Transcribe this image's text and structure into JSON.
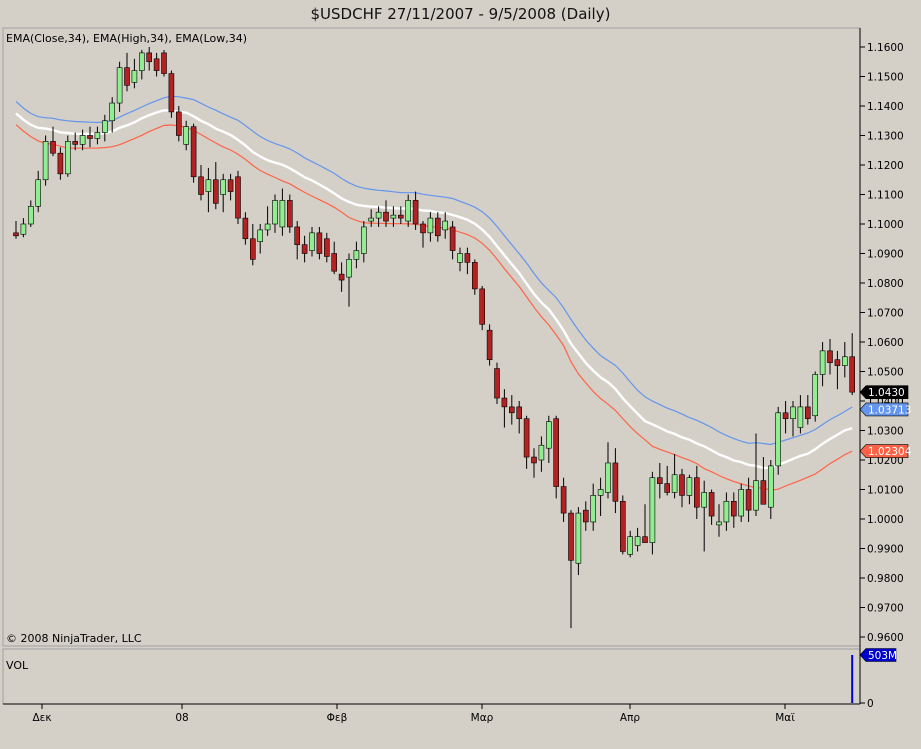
{
  "chart_data": {
    "type": "candlestick",
    "title": "$USDCHF  27/11/2007 - 9/5/2008 (Daily)",
    "indicators_label": "EMA(Close,34), EMA(High,34), EMA(Low,34)",
    "copyright": "© 2008 NinjaTrader, LLC",
    "volume_label": "VOL",
    "volume_badge": "503M",
    "volume_zero_label": "0",
    "ylim": [
      0.9565,
      1.1655
    ],
    "y_ticks": [
      "1.1600",
      "1.1500",
      "1.1400",
      "1.1300",
      "1.1200",
      "1.1100",
      "1.1000",
      "1.0900",
      "1.0800",
      "1.0700",
      "1.0600",
      "1.0500",
      "1.0400",
      "1.0300",
      "1.0200",
      "1.0100",
      "1.0000",
      "0.9900",
      "0.9800",
      "0.9700",
      "0.9600"
    ],
    "x_tick_labels": [
      "Δεκ",
      "08",
      "Φεβ",
      "Μαρ",
      "Απρ",
      "Μαϊ"
    ],
    "last_price_badge": "1.0430",
    "ema_high_badge": "1.03713",
    "ema_low_badge": "1.02304",
    "grid": false,
    "colors": {
      "up": "#90ee90",
      "down": "#b22222",
      "ema_high": "#6495ed",
      "ema_close": "#ffffff",
      "ema_low": "#ff6347",
      "volume": "#0000cd"
    },
    "candles": [
      [
        1.097,
        1.101,
        1.095,
        1.096
      ],
      [
        1.0965,
        1.102,
        1.0955,
        1.1
      ],
      [
        1.1,
        1.108,
        1.099,
        1.106
      ],
      [
        1.106,
        1.118,
        1.104,
        1.115
      ],
      [
        1.115,
        1.13,
        1.113,
        1.128
      ],
      [
        1.128,
        1.133,
        1.123,
        1.124
      ],
      [
        1.124,
        1.126,
        1.115,
        1.117
      ],
      [
        1.117,
        1.13,
        1.116,
        1.128
      ],
      [
        1.128,
        1.131,
        1.125,
        1.127
      ],
      [
        1.127,
        1.132,
        1.125,
        1.13
      ],
      [
        1.13,
        1.133,
        1.126,
        1.129
      ],
      [
        1.129,
        1.133,
        1.127,
        1.131
      ],
      [
        1.131,
        1.137,
        1.128,
        1.135
      ],
      [
        1.135,
        1.143,
        1.131,
        1.141
      ],
      [
        1.141,
        1.155,
        1.138,
        1.153
      ],
      [
        1.153,
        1.158,
        1.145,
        1.147
      ],
      [
        1.148,
        1.156,
        1.146,
        1.152
      ],
      [
        1.152,
        1.159,
        1.149,
        1.158
      ],
      [
        1.158,
        1.16,
        1.152,
        1.155
      ],
      [
        1.156,
        1.158,
        1.15,
        1.152
      ],
      [
        1.158,
        1.159,
        1.15,
        1.151
      ],
      [
        1.151,
        1.152,
        1.136,
        1.138
      ],
      [
        1.138,
        1.14,
        1.128,
        1.13
      ],
      [
        1.127,
        1.135,
        1.125,
        1.133
      ],
      [
        1.133,
        1.134,
        1.114,
        1.116
      ],
      [
        1.116,
        1.12,
        1.108,
        1.11
      ],
      [
        1.111,
        1.119,
        1.104,
        1.115
      ],
      [
        1.115,
        1.121,
        1.105,
        1.107
      ],
      [
        1.11,
        1.117,
        1.104,
        1.115
      ],
      [
        1.115,
        1.117,
        1.108,
        1.111
      ],
      [
        1.116,
        1.118,
        1.1,
        1.102
      ],
      [
        1.102,
        1.104,
        1.093,
        1.095
      ],
      [
        1.095,
        1.1,
        1.086,
        1.088
      ],
      [
        1.094,
        1.1,
        1.09,
        1.098
      ],
      [
        1.098,
        1.106,
        1.096,
        1.1
      ],
      [
        1.1,
        1.11,
        1.097,
        1.108
      ],
      [
        1.099,
        1.112,
        1.096,
        1.108
      ],
      [
        1.108,
        1.11,
        1.097,
        1.099
      ],
      [
        1.099,
        1.101,
        1.088,
        1.093
      ],
      [
        1.093,
        1.096,
        1.087,
        1.09
      ],
      [
        1.091,
        1.099,
        1.089,
        1.097
      ],
      [
        1.097,
        1.099,
        1.088,
        1.09
      ],
      [
        1.095,
        1.097,
        1.087,
        1.089
      ],
      [
        1.09,
        1.094,
        1.083,
        1.084
      ],
      [
        1.083,
        1.087,
        1.077,
        1.081
      ],
      [
        1.082,
        1.09,
        1.072,
        1.088
      ],
      [
        1.088,
        1.094,
        1.085,
        1.091
      ],
      [
        1.09,
        1.101,
        1.087,
        1.099
      ],
      [
        1.101,
        1.105,
        1.099,
        1.102
      ],
      [
        1.102,
        1.106,
        1.099,
        1.104
      ],
      [
        1.104,
        1.108,
        1.099,
        1.101
      ],
      [
        1.102,
        1.106,
        1.099,
        1.103
      ],
      [
        1.103,
        1.106,
        1.1,
        1.102
      ],
      [
        1.101,
        1.11,
        1.099,
        1.108
      ],
      [
        1.108,
        1.111,
        1.098,
        1.1
      ],
      [
        1.1,
        1.101,
        1.092,
        1.097
      ],
      [
        1.097,
        1.104,
        1.094,
        1.102
      ],
      [
        1.102,
        1.104,
        1.094,
        1.096
      ],
      [
        1.098,
        1.104,
        1.095,
        1.101
      ],
      [
        1.099,
        1.101,
        1.088,
        1.091
      ],
      [
        1.087,
        1.092,
        1.084,
        1.09
      ],
      [
        1.09,
        1.092,
        1.083,
        1.087
      ],
      [
        1.087,
        1.088,
        1.076,
        1.078
      ],
      [
        1.078,
        1.079,
        1.064,
        1.066
      ],
      [
        1.064,
        1.066,
        1.052,
        1.054
      ],
      [
        1.051,
        1.053,
        1.039,
        1.041
      ],
      [
        1.041,
        1.044,
        1.031,
        1.038
      ],
      [
        1.038,
        1.042,
        1.032,
        1.036
      ],
      [
        1.038,
        1.04,
        1.029,
        1.034
      ],
      [
        1.034,
        1.035,
        1.017,
        1.021
      ],
      [
        1.021,
        1.024,
        1.014,
        1.019
      ],
      [
        1.02,
        1.028,
        1.016,
        1.025
      ],
      [
        1.024,
        1.035,
        1.019,
        1.033
      ],
      [
        1.034,
        1.035,
        1.007,
        1.011
      ],
      [
        1.011,
        1.014,
        0.999,
        1.002
      ],
      [
        1.002,
        1.003,
        0.963,
        0.986
      ],
      [
        0.985,
        1.004,
        0.981,
        1.002
      ],
      [
        1.003,
        1.006,
        0.996,
        0.999
      ],
      [
        0.999,
        1.012,
        0.996,
        1.008
      ],
      [
        1.008,
        1.014,
        1.001,
        1.01
      ],
      [
        1.009,
        1.026,
        1.007,
        1.019
      ],
      [
        1.019,
        1.024,
        1.002,
        1.006
      ],
      [
        1.006,
        1.008,
        0.988,
        0.989
      ],
      [
        0.988,
        0.996,
        0.987,
        0.994
      ],
      [
        0.991,
        0.997,
        0.989,
        0.994
      ],
      [
        0.994,
        1.005,
        0.993,
        0.992
      ],
      [
        0.992,
        1.016,
        0.988,
        1.014
      ],
      [
        1.014,
        1.019,
        1.007,
        1.012
      ],
      [
        1.012,
        1.018,
        1.008,
        1.009
      ],
      [
        1.009,
        1.022,
        1.007,
        1.015
      ],
      [
        1.015,
        1.017,
        1.004,
        1.008
      ],
      [
        1.008,
        1.015,
        1.005,
        1.014
      ],
      [
        1.014,
        1.018,
        1.0,
        1.004
      ],
      [
        1.004,
        1.013,
        0.989,
        1.009
      ],
      [
        1.009,
        1.01,
        0.998,
        1.001
      ],
      [
        0.998,
        1.005,
        0.994,
        0.999
      ],
      [
        0.999,
        1.009,
        0.996,
        1.006
      ],
      [
        1.006,
        1.009,
        0.997,
        1.001
      ],
      [
        1.001,
        1.012,
        0.999,
        1.01
      ],
      [
        1.01,
        1.014,
        0.999,
        1.003
      ],
      [
        1.003,
        1.029,
        1.001,
        1.013
      ],
      [
        1.013,
        1.021,
        1.007,
        1.005
      ],
      [
        1.004,
        1.02,
        1.0,
        1.018
      ],
      [
        1.018,
        1.038,
        1.015,
        1.036
      ],
      [
        1.036,
        1.04,
        1.029,
        1.034
      ],
      [
        1.034,
        1.04,
        1.028,
        1.038
      ],
      [
        1.031,
        1.042,
        1.029,
        1.038
      ],
      [
        1.038,
        1.042,
        1.032,
        1.034
      ],
      [
        1.035,
        1.05,
        1.033,
        1.049
      ],
      [
        1.049,
        1.06,
        1.045,
        1.057
      ],
      [
        1.057,
        1.061,
        1.049,
        1.053
      ],
      [
        1.054,
        1.057,
        1.044,
        1.052
      ],
      [
        1.052,
        1.06,
        1.048,
        1.055
      ],
      [
        1.055,
        1.063,
        1.042,
        1.043
      ]
    ]
  }
}
